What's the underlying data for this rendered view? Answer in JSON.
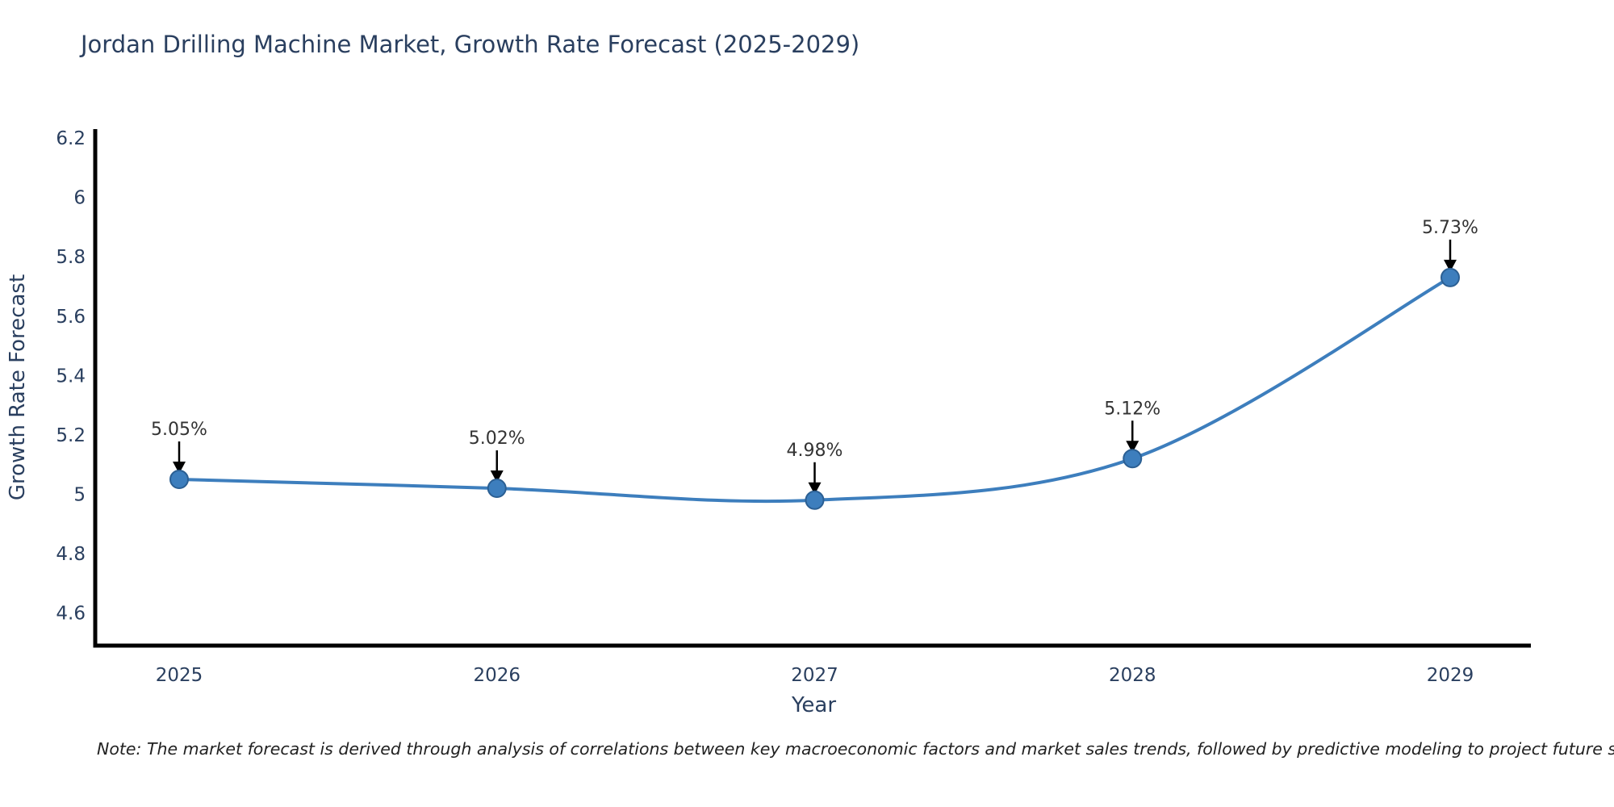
{
  "title": "Jordan Drilling Machine Market, Growth Rate Forecast (2025-2029)",
  "note": "Note: The market forecast is derived through analysis of correlations between key macroeconomic factors and market sales trends, followed by predictive modeling to project future sales",
  "chart_data": {
    "type": "line",
    "title": "Jordan Drilling Machine Market, Growth Rate Forecast (2025-2029)",
    "xlabel": "Year",
    "ylabel": "Growth Rate Forecast",
    "categories": [
      "2025",
      "2026",
      "2027",
      "2028",
      "2029"
    ],
    "x": [
      2025,
      2026,
      2027,
      2028,
      2029
    ],
    "values": [
      5.05,
      5.02,
      4.98,
      5.12,
      5.73
    ],
    "point_labels": [
      "5.05%",
      "5.02%",
      "4.98%",
      "5.12%",
      "5.73%"
    ],
    "ylim": [
      4.49,
      6.23
    ],
    "yticks": [
      4.6,
      4.8,
      5.0,
      5.2,
      5.4,
      5.6,
      5.8,
      6.0,
      6.2
    ],
    "ytick_labels": [
      "4.6",
      "4.8",
      "5",
      "5.2",
      "5.4",
      "5.6",
      "5.8",
      "6",
      "6.2"
    ],
    "grid": false,
    "legend_position": "none",
    "line_shape": "spline",
    "colors": {
      "line": "#3d7ebd",
      "marker_fill": "#3d7ebd",
      "marker_edge": "#2b5f93",
      "axis_line": "#000000",
      "axis_text": "#2a3f5f",
      "annotation_text": "#333333",
      "annotation_arrow": "#000000",
      "title_text": "#2a3f5f"
    }
  }
}
